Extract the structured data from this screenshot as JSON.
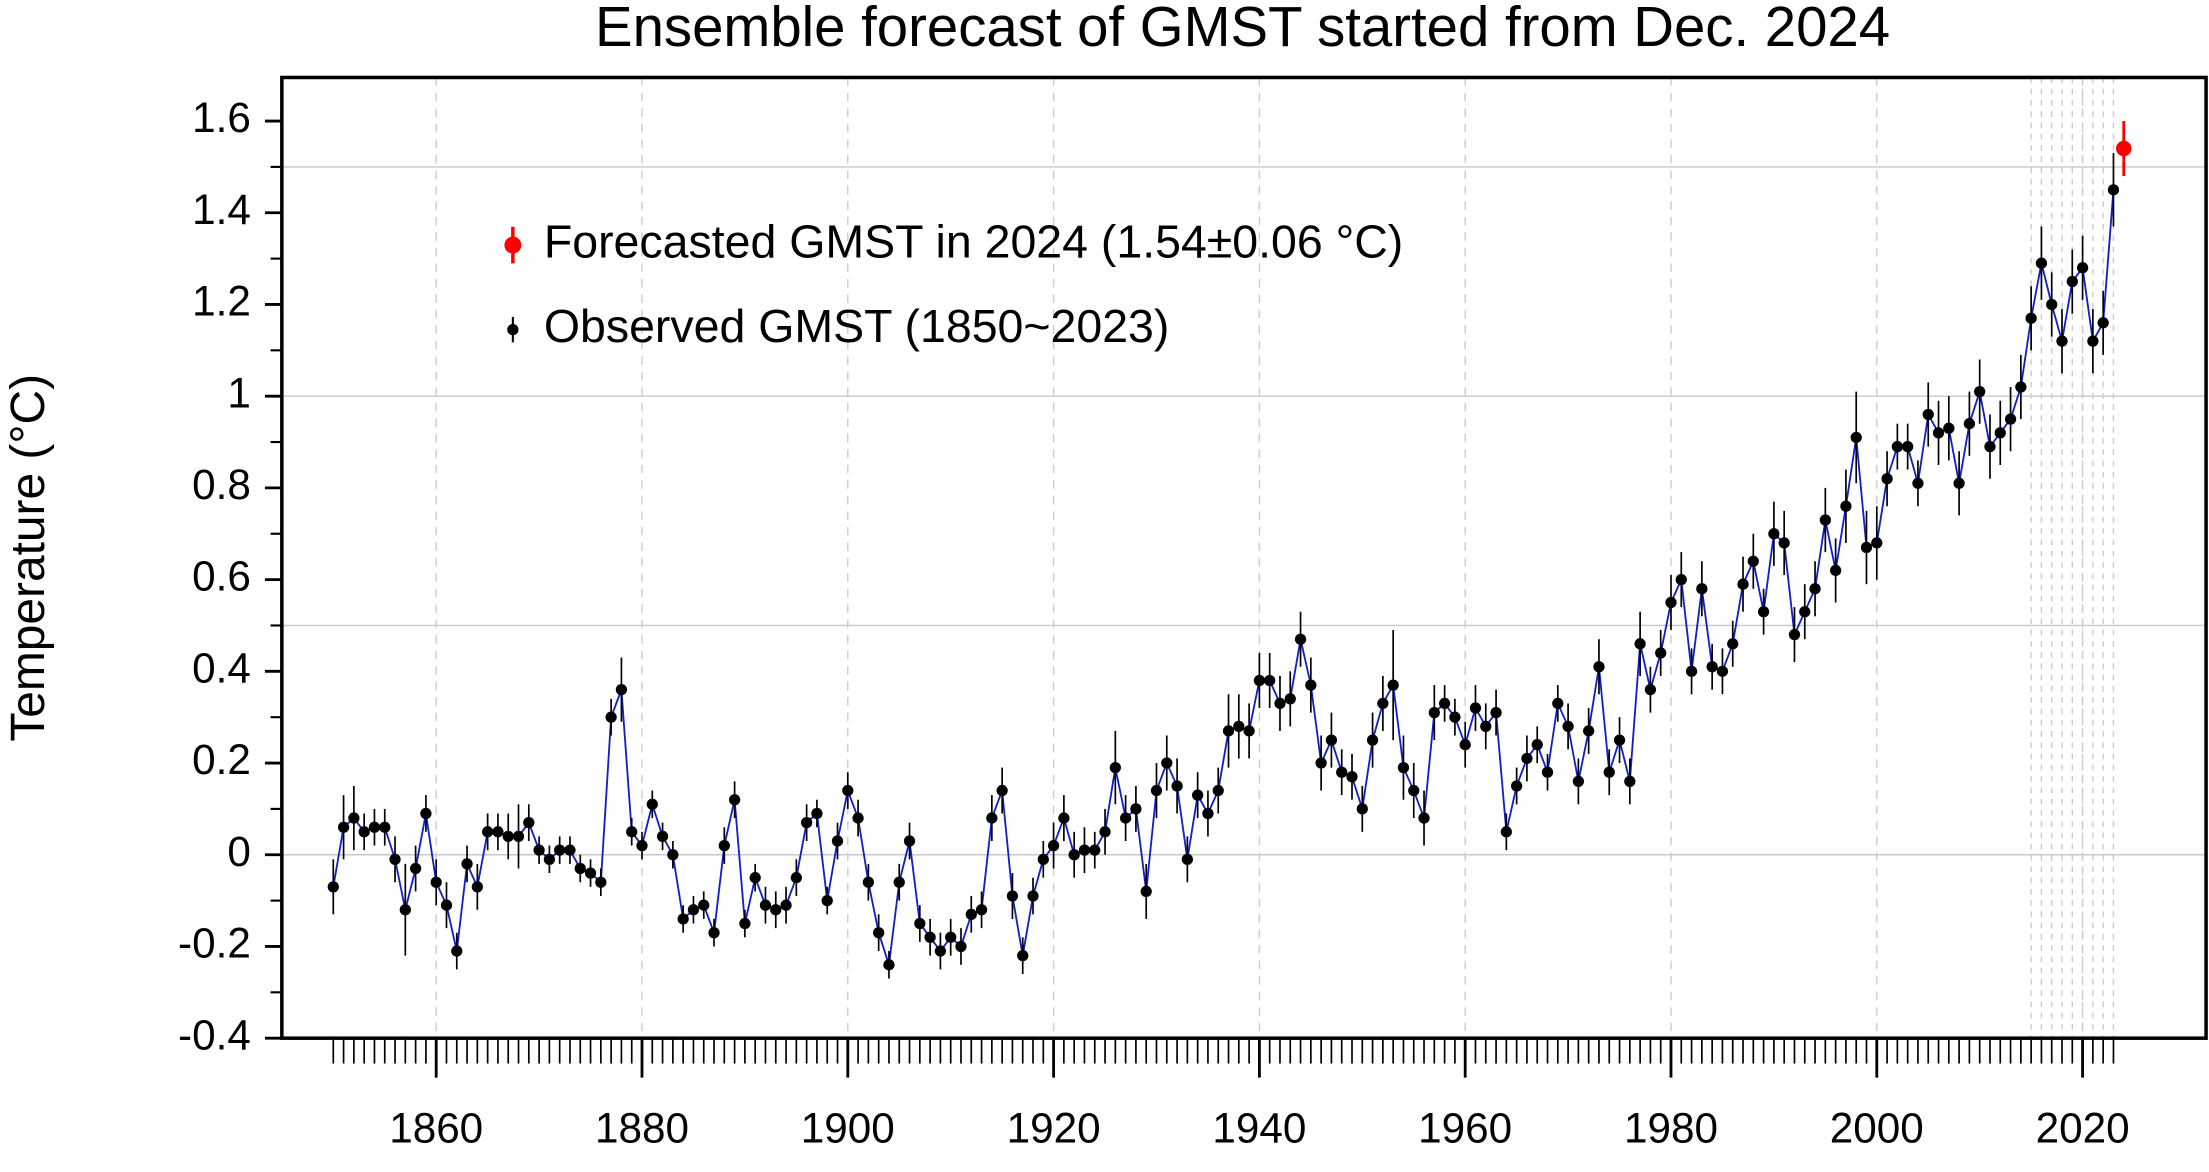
{
  "chart_data": {
    "type": "errorbar-line",
    "title": "Ensemble forecast of GMST started from Dec. 2024",
    "y_label": "Temperature (°C)",
    "xlim": [
      1845,
      2032
    ],
    "ylim": [
      -0.4,
      1.695
    ],
    "xticks": [
      1860,
      1880,
      1900,
      1920,
      1940,
      1960,
      1980,
      2000,
      2020
    ],
    "yticks": [
      -0.4,
      -0.2,
      0,
      0.2,
      0.4,
      0.6,
      0.8,
      1,
      1.2,
      1.4,
      1.6
    ],
    "yminorticks": [
      -0.3,
      -0.1,
      0.1,
      0.3,
      0.5,
      0.7,
      0.9,
      1.1,
      1.3,
      1.5
    ],
    "hgrid": [
      0,
      0.5,
      1,
      1.5
    ],
    "xgrid_extra": [
      2015,
      2016,
      2017,
      2018,
      2019,
      2020,
      2021,
      2022,
      2023
    ],
    "legend": "upper left",
    "series": [
      {
        "name": "Forecasted GMST in 2024 (1.54±0.06 °C)",
        "color": "#ff0000",
        "x": [
          2024
        ],
        "values": [
          1.54
        ],
        "errors": [
          0.06
        ]
      },
      {
        "name": "Observed GMST (1850~2023)",
        "color": "#000000",
        "line_color": "#1020c8",
        "x": [
          1850,
          1851,
          1852,
          1853,
          1854,
          1855,
          1856,
          1857,
          1858,
          1859,
          1860,
          1861,
          1862,
          1863,
          1864,
          1865,
          1866,
          1867,
          1868,
          1869,
          1870,
          1871,
          1872,
          1873,
          1874,
          1875,
          1876,
          1877,
          1878,
          1879,
          1880,
          1881,
          1882,
          1883,
          1884,
          1885,
          1886,
          1887,
          1888,
          1889,
          1890,
          1891,
          1892,
          1893,
          1894,
          1895,
          1896,
          1897,
          1898,
          1899,
          1900,
          1901,
          1902,
          1903,
          1904,
          1905,
          1906,
          1907,
          1908,
          1909,
          1910,
          1911,
          1912,
          1913,
          1914,
          1915,
          1916,
          1917,
          1918,
          1919,
          1920,
          1921,
          1922,
          1923,
          1924,
          1925,
          1926,
          1927,
          1928,
          1929,
          1930,
          1931,
          1932,
          1933,
          1934,
          1935,
          1936,
          1937,
          1938,
          1939,
          1940,
          1941,
          1942,
          1943,
          1944,
          1945,
          1946,
          1947,
          1948,
          1949,
          1950,
          1951,
          1952,
          1953,
          1954,
          1955,
          1956,
          1957,
          1958,
          1959,
          1960,
          1961,
          1962,
          1963,
          1964,
          1965,
          1966,
          1967,
          1968,
          1969,
          1970,
          1971,
          1972,
          1973,
          1974,
          1975,
          1976,
          1977,
          1978,
          1979,
          1980,
          1981,
          1982,
          1983,
          1984,
          1985,
          1986,
          1987,
          1988,
          1989,
          1990,
          1991,
          1992,
          1993,
          1994,
          1995,
          1996,
          1997,
          1998,
          1999,
          2000,
          2001,
          2002,
          2003,
          2004,
          2005,
          2006,
          2007,
          2008,
          2009,
          2010,
          2011,
          2012,
          2013,
          2014,
          2015,
          2016,
          2017,
          2018,
          2019,
          2020,
          2021,
          2022,
          2023
        ],
        "values": [
          -0.07,
          0.06,
          0.08,
          0.05,
          0.06,
          0.06,
          -0.01,
          -0.12,
          -0.03,
          0.09,
          -0.06,
          -0.11,
          -0.21,
          -0.02,
          -0.07,
          0.05,
          0.05,
          0.04,
          0.04,
          0.07,
          0.01,
          -0.01,
          0.01,
          0.01,
          -0.03,
          -0.04,
          -0.06,
          0.3,
          0.36,
          0.05,
          0.02,
          0.11,
          0.04,
          0.0,
          -0.14,
          -0.12,
          -0.11,
          -0.17,
          0.02,
          0.12,
          -0.15,
          -0.05,
          -0.11,
          -0.12,
          -0.11,
          -0.05,
          0.07,
          0.09,
          -0.1,
          0.03,
          0.14,
          0.08,
          -0.06,
          -0.17,
          -0.24,
          -0.06,
          0.03,
          -0.15,
          -0.18,
          -0.21,
          -0.18,
          -0.2,
          -0.13,
          -0.12,
          0.08,
          0.14,
          -0.09,
          -0.22,
          -0.09,
          -0.01,
          0.02,
          0.08,
          0.0,
          0.01,
          0.01,
          0.05,
          0.19,
          0.08,
          0.1,
          -0.08,
          0.14,
          0.2,
          0.15,
          -0.01,
          0.13,
          0.09,
          0.14,
          0.27,
          0.28,
          0.27,
          0.38,
          0.38,
          0.33,
          0.34,
          0.47,
          0.37,
          0.2,
          0.25,
          0.18,
          0.17,
          0.1,
          0.25,
          0.33,
          0.37,
          0.19,
          0.14,
          0.08,
          0.31,
          0.33,
          0.3,
          0.24,
          0.32,
          0.28,
          0.31,
          0.05,
          0.15,
          0.21,
          0.24,
          0.18,
          0.33,
          0.28,
          0.16,
          0.27,
          0.41,
          0.18,
          0.25,
          0.16,
          0.46,
          0.36,
          0.44,
          0.55,
          0.6,
          0.4,
          0.58,
          0.41,
          0.4,
          0.46,
          0.59,
          0.64,
          0.53,
          0.7,
          0.68,
          0.48,
          0.53,
          0.58,
          0.73,
          0.62,
          0.76,
          0.91,
          0.67,
          0.68,
          0.82,
          0.89,
          0.89,
          0.81,
          0.96,
          0.92,
          0.93,
          0.81,
          0.94,
          1.01,
          0.89,
          0.92,
          0.95,
          1.02,
          1.17,
          1.29,
          1.2,
          1.12,
          1.25,
          1.28,
          1.12,
          1.16,
          1.45
        ],
        "errors": [
          0.06,
          0.07,
          0.07,
          0.04,
          0.04,
          0.04,
          0.05,
          0.1,
          0.05,
          0.04,
          0.05,
          0.05,
          0.04,
          0.04,
          0.05,
          0.04,
          0.04,
          0.05,
          0.07,
          0.04,
          0.03,
          0.03,
          0.03,
          0.03,
          0.03,
          0.03,
          0.03,
          0.04,
          0.07,
          0.03,
          0.03,
          0.03,
          0.03,
          0.03,
          0.03,
          0.03,
          0.03,
          0.03,
          0.04,
          0.04,
          0.03,
          0.03,
          0.04,
          0.04,
          0.04,
          0.04,
          0.04,
          0.03,
          0.03,
          0.04,
          0.04,
          0.04,
          0.04,
          0.04,
          0.03,
          0.04,
          0.04,
          0.04,
          0.04,
          0.04,
          0.04,
          0.04,
          0.04,
          0.04,
          0.05,
          0.05,
          0.05,
          0.04,
          0.04,
          0.04,
          0.05,
          0.05,
          0.05,
          0.05,
          0.04,
          0.05,
          0.08,
          0.05,
          0.05,
          0.06,
          0.06,
          0.06,
          0.06,
          0.05,
          0.05,
          0.05,
          0.05,
          0.08,
          0.07,
          0.06,
          0.06,
          0.06,
          0.06,
          0.06,
          0.06,
          0.06,
          0.06,
          0.06,
          0.05,
          0.05,
          0.05,
          0.06,
          0.06,
          0.12,
          0.07,
          0.06,
          0.06,
          0.06,
          0.04,
          0.04,
          0.05,
          0.05,
          0.05,
          0.05,
          0.04,
          0.04,
          0.05,
          0.04,
          0.04,
          0.04,
          0.05,
          0.05,
          0.05,
          0.06,
          0.05,
          0.05,
          0.05,
          0.07,
          0.05,
          0.05,
          0.06,
          0.06,
          0.05,
          0.06,
          0.05,
          0.05,
          0.05,
          0.06,
          0.06,
          0.05,
          0.07,
          0.07,
          0.06,
          0.06,
          0.06,
          0.07,
          0.07,
          0.08,
          0.1,
          0.08,
          0.08,
          0.06,
          0.05,
          0.05,
          0.05,
          0.07,
          0.07,
          0.07,
          0.07,
          0.07,
          0.07,
          0.07,
          0.07,
          0.07,
          0.07,
          0.07,
          0.08,
          0.07,
          0.07,
          0.07,
          0.07,
          0.07,
          0.07,
          0.08
        ]
      }
    ]
  }
}
